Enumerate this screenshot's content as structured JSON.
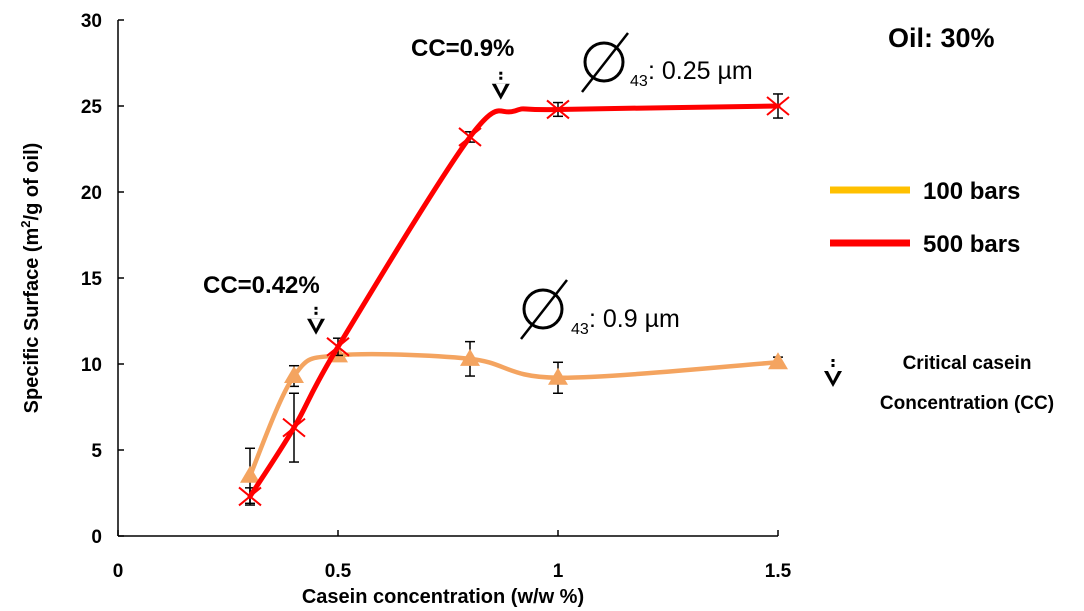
{
  "chart_data": {
    "type": "line",
    "xlabel": "Casein concentration (w/w %)",
    "ylabel_parts": [
      "Specific Surface (m",
      "2",
      "/g of oil)"
    ],
    "xlim": [
      0,
      1.5
    ],
    "ylim": [
      0,
      30
    ],
    "x_ticks": [
      "0",
      "0.5",
      "1",
      "1.5"
    ],
    "x_tick_values": [
      0,
      0.5,
      1,
      1.5
    ],
    "y_ticks": [
      "0",
      "5",
      "10",
      "15",
      "20",
      "25",
      "30"
    ],
    "y_tick_values": [
      0,
      5,
      10,
      15,
      20,
      25,
      30
    ],
    "grid": false,
    "legend_position": "right",
    "series": [
      {
        "name": "100 bars",
        "color": "#F4A460",
        "legend_color": "#FFC000",
        "marker": "triangle",
        "x": [
          0.3,
          0.4,
          0.5,
          0.8,
          1.0,
          1.5
        ],
        "y": [
          3.5,
          9.3,
          10.5,
          10.3,
          9.2,
          10.1
        ],
        "err": [
          1.6,
          0.6,
          0.3,
          1.0,
          0.9,
          0.3
        ],
        "curve": [
          [
            0.3,
            3.5
          ],
          [
            0.4,
            9.3
          ],
          [
            0.5,
            10.5
          ],
          [
            0.8,
            10.3
          ],
          [
            1.0,
            9.2
          ],
          [
            1.5,
            10.1
          ]
        ]
      },
      {
        "name": "500 bars",
        "color": "#FF0000",
        "legend_color": "#FF0000",
        "marker": "x",
        "x": [
          0.3,
          0.4,
          0.5,
          0.8,
          1.0,
          1.5
        ],
        "y": [
          2.3,
          6.3,
          11.0,
          23.2,
          24.8,
          25.0
        ],
        "err": [
          0.5,
          2.0,
          0.5,
          0.3,
          0.4,
          0.7
        ],
        "curve": [
          [
            0.3,
            2.3
          ],
          [
            0.4,
            6.3
          ],
          [
            0.5,
            11.0
          ],
          [
            0.8,
            23.2
          ],
          [
            0.9,
            24.7
          ],
          [
            1.0,
            24.8
          ],
          [
            1.5,
            25.0
          ]
        ]
      }
    ],
    "annotations": {
      "cc_low": {
        "text": "CC=0.42%",
        "x": 0.45,
        "y": 11.0
      },
      "cc_high": {
        "text": "CC=0.9%",
        "x": 0.87,
        "y": 24.9
      },
      "dia_low": {
        "symbol": "∅",
        "sub": "43",
        "text": ": 0.9 µm"
      },
      "dia_high": {
        "symbol": "∅",
        "sub": "43",
        "text": ": 0.25 µm"
      },
      "oil": "Oil: 30%",
      "critical_line1": "Critical casein",
      "critical_line2": "Concentration (CC)"
    }
  }
}
